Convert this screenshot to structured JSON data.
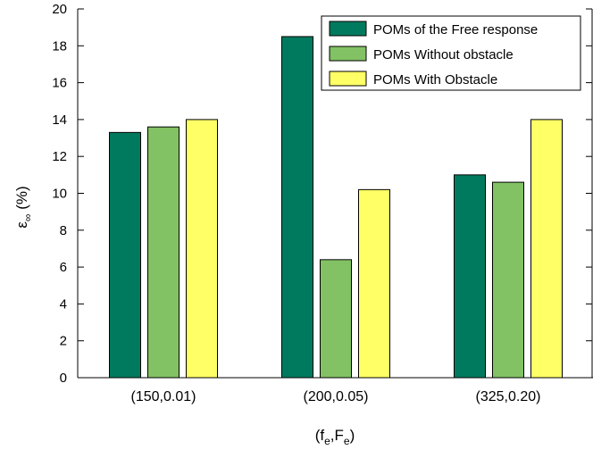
{
  "chart_data": {
    "type": "bar",
    "title": "",
    "categories": [
      "(150,0.01)",
      "(200,0.05)",
      "(325,0.20)"
    ],
    "series": [
      {
        "name": "POMs of the Free response",
        "color": "#007a5e",
        "values": [
          13.3,
          18.5,
          11.0
        ]
      },
      {
        "name": "POMs Without obstacle",
        "color": "#82c264",
        "values": [
          13.6,
          6.4,
          10.6
        ]
      },
      {
        "name": "POMs With Obstacle",
        "color": "#ffff66",
        "values": [
          14.0,
          10.2,
          14.0
        ]
      }
    ],
    "xlabel": {
      "base1": "(f",
      "sub1": "e",
      "sep": ",F",
      "sub2": "e",
      "end": ")"
    },
    "ylabel": {
      "base": "ε",
      "sub": "∞",
      "unit": " (%)"
    },
    "ylim": [
      0,
      20
    ],
    "yticks": [
      0,
      2,
      4,
      6,
      8,
      10,
      12,
      14,
      16,
      18,
      20
    ],
    "grid": false,
    "legend_position": "top-right"
  }
}
